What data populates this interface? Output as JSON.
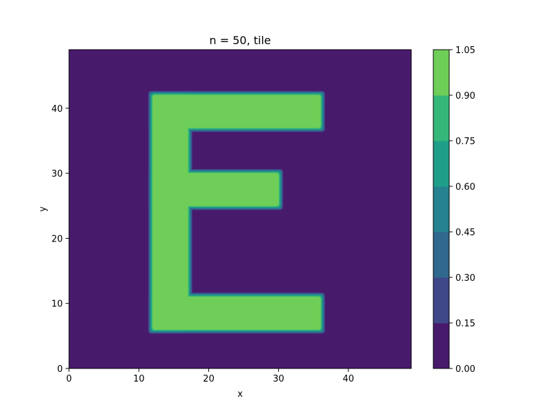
{
  "chart_data": {
    "type": "heatmap",
    "subtype": "filled-contour",
    "title": "n = 50, tile",
    "xlabel": "x",
    "ylabel": "y",
    "xlim": [
      0,
      49
    ],
    "ylim": [
      0,
      49
    ],
    "xticks": [
      0,
      10,
      20,
      30,
      40
    ],
    "yticks": [
      0,
      10,
      20,
      30,
      40
    ],
    "grid": false,
    "colormap": "viridis",
    "levels": [
      0.0,
      0.15,
      0.3,
      0.45,
      0.6,
      0.75,
      0.9,
      1.05
    ],
    "colorbar_ticks": [
      "0.00",
      "0.15",
      "0.30",
      "0.45",
      "0.60",
      "0.75",
      "0.90",
      "1.05"
    ],
    "level_colors": [
      "#481a6c",
      "#3f4889",
      "#31688e",
      "#26828e",
      "#1f9e89",
      "#35b779",
      "#6ece58",
      "#d0e11c"
    ],
    "background_value": 0.0,
    "shape_value": 1.0,
    "shape": "letter E",
    "shape_rectangles": [
      {
        "part": "spine",
        "x": [
          12,
          17
        ],
        "y": [
          6,
          42
        ]
      },
      {
        "part": "top-bar",
        "x": [
          12,
          36
        ],
        "y": [
          37,
          42
        ]
      },
      {
        "part": "middle-bar",
        "x": [
          12,
          30
        ],
        "y": [
          25,
          30
        ]
      },
      {
        "part": "bottom-bar",
        "x": [
          12,
          36
        ],
        "y": [
          6,
          11
        ]
      }
    ]
  }
}
